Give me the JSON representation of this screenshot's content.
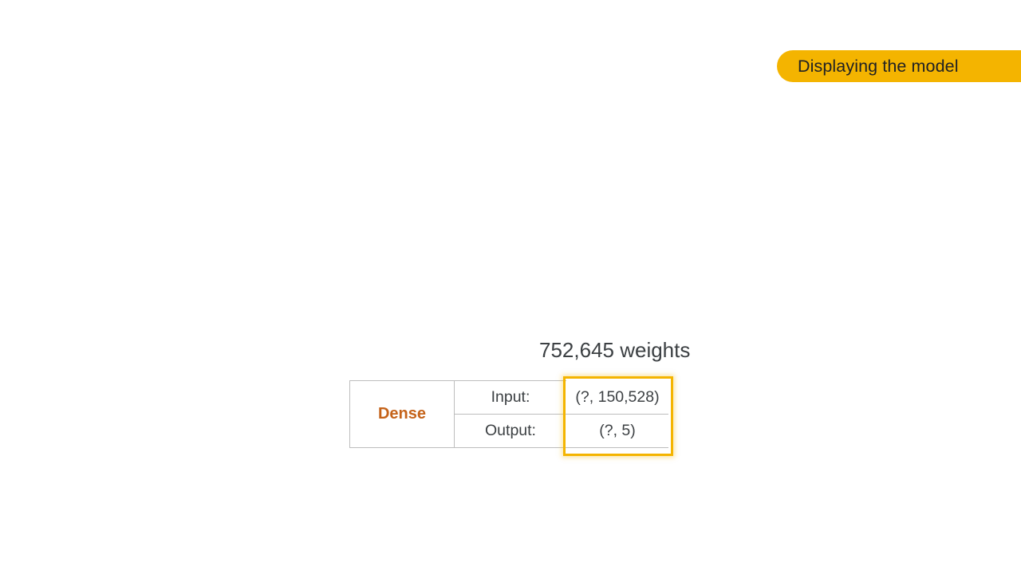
{
  "section_title": "Displaying the model",
  "weights_label": "752,645 weights",
  "layer": {
    "name": "Dense",
    "input_label": "Input:",
    "input_shape": "(?, 150,528)",
    "output_label": "Output:",
    "output_shape": "(?, 5)"
  },
  "colors": {
    "accent": "#f4b400",
    "layer_name": "#c5631a",
    "text": "#3c4043",
    "border": "#bdbdbd"
  }
}
